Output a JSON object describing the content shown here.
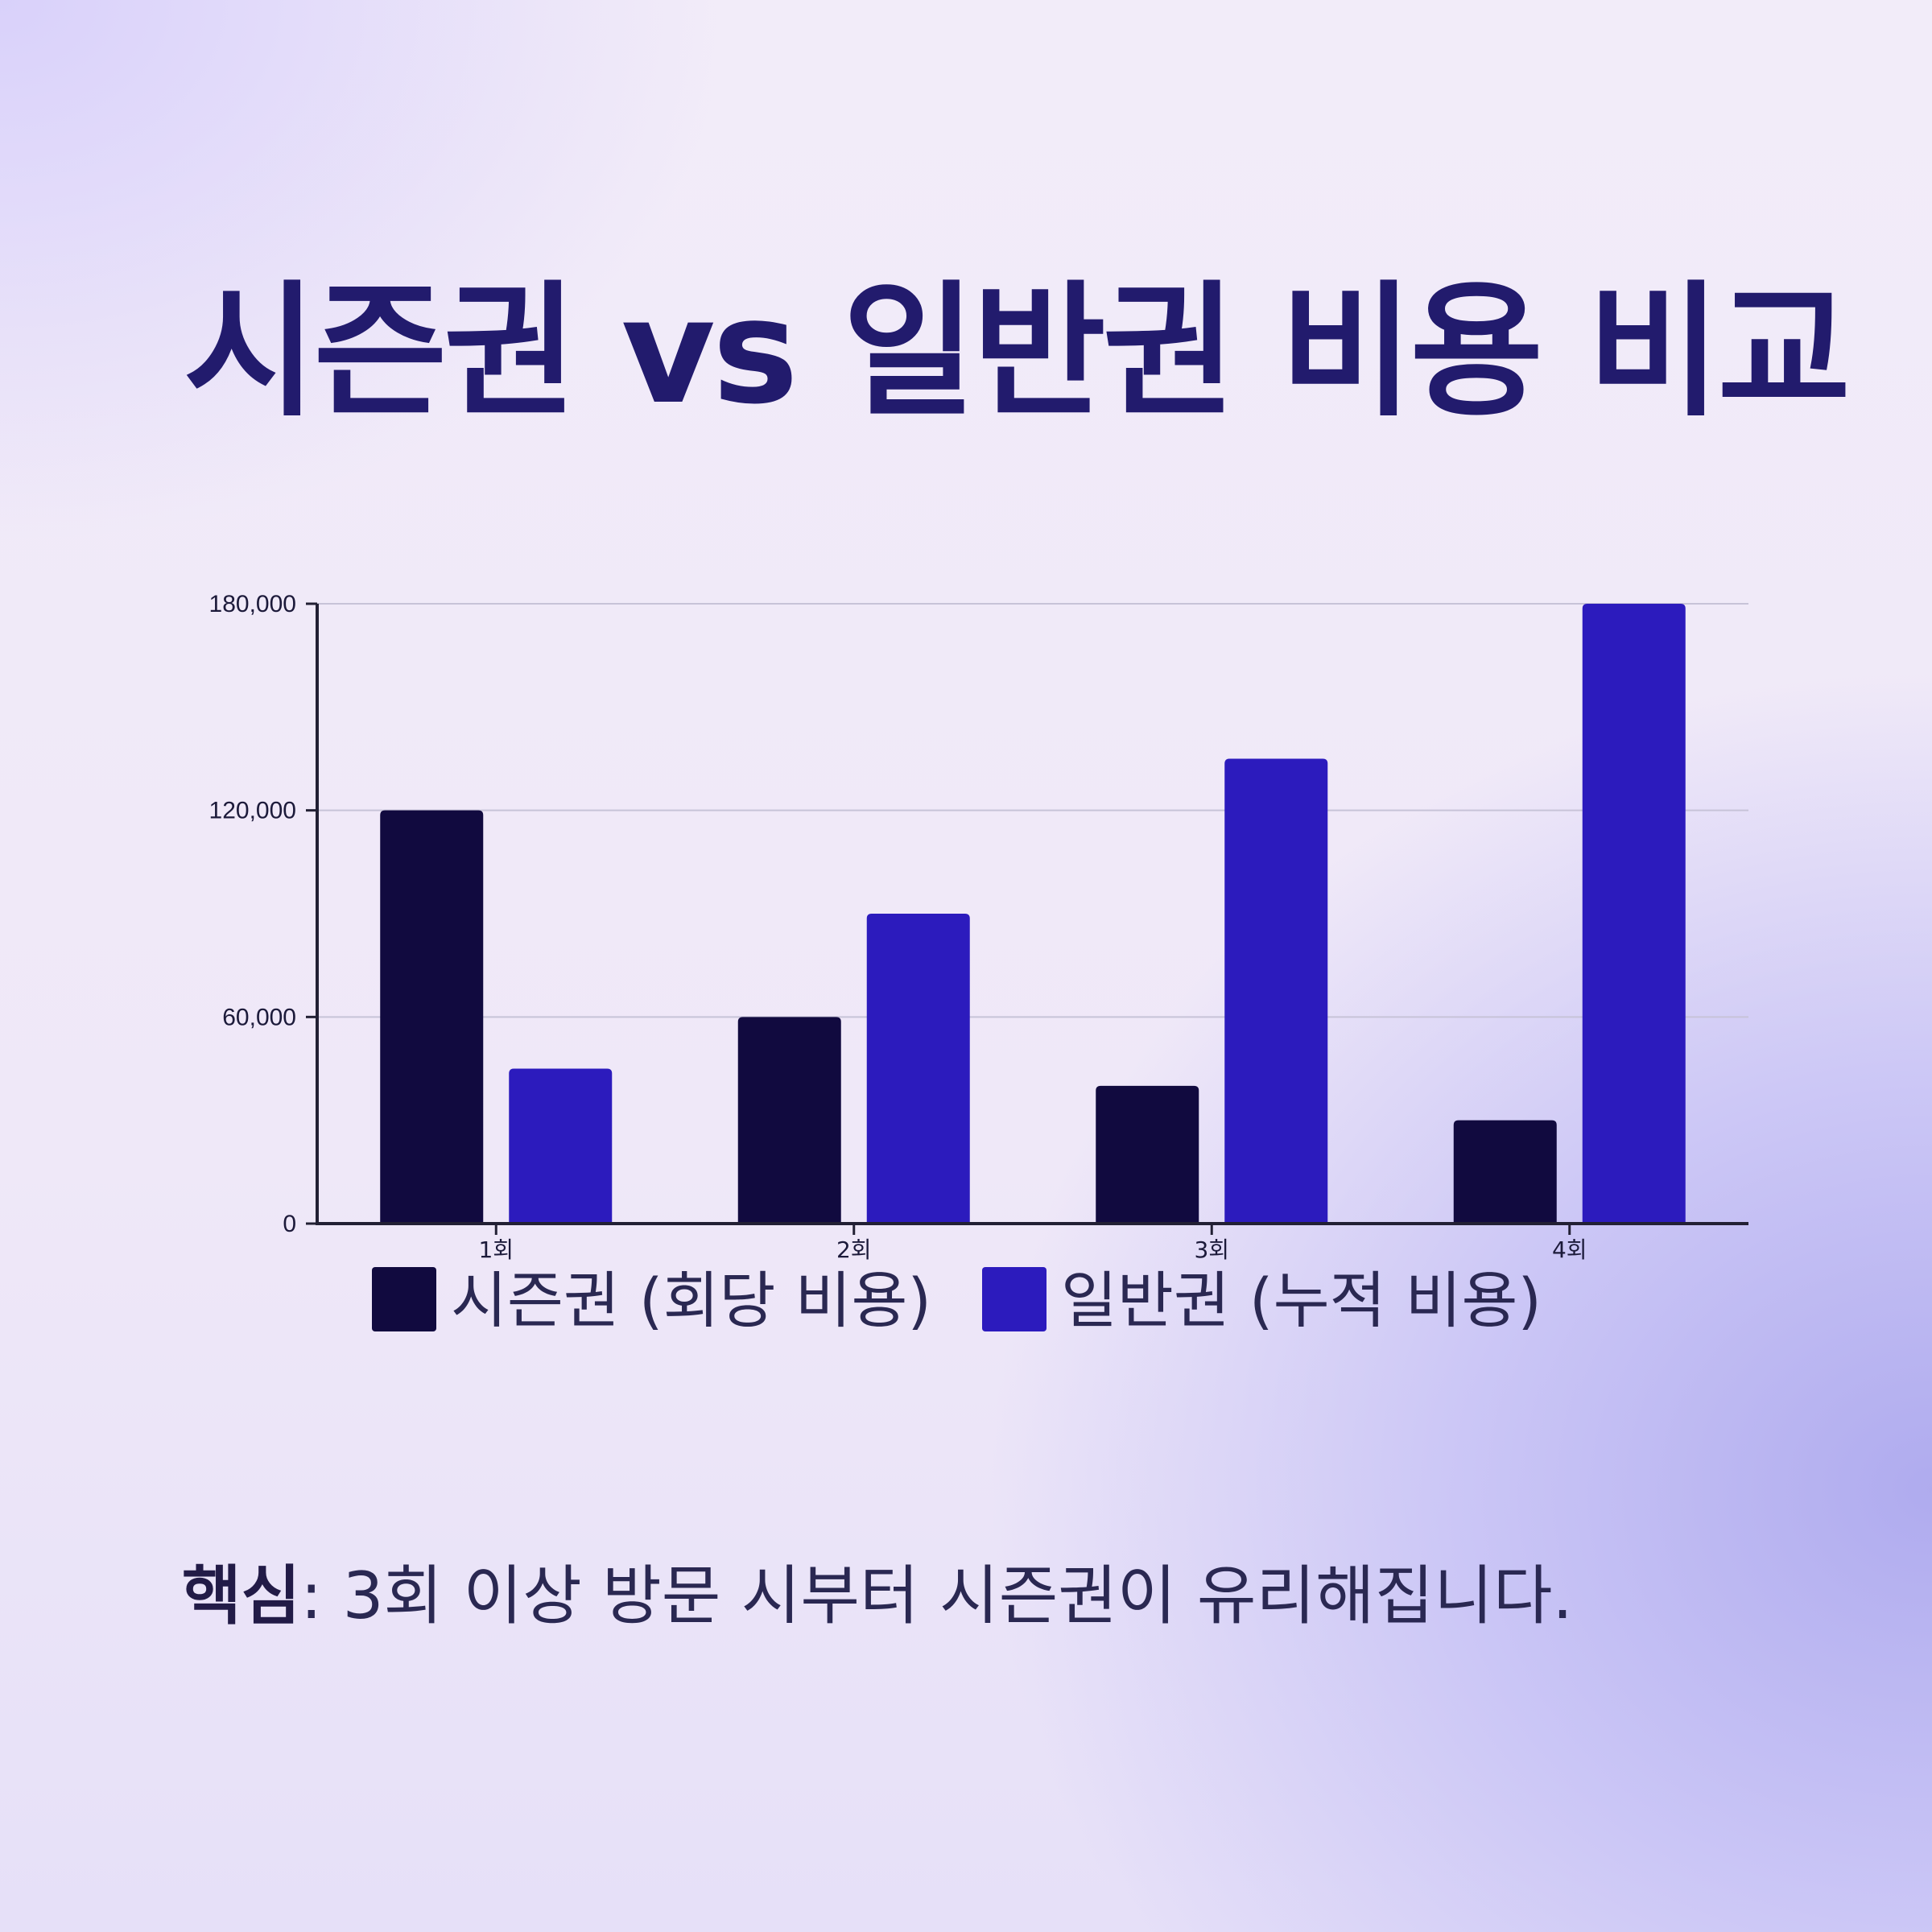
{
  "chart_data": {
    "type": "bar",
    "title": "시즌권 vs 일반권 비용 비교",
    "categories": [
      "1회",
      "2회",
      "3회",
      "4회"
    ],
    "series": [
      {
        "name": "시즌권 (회당 비용)",
        "values": [
          120000,
          60000,
          40000,
          30000
        ],
        "color": "#110a3f"
      },
      {
        "name": "일반권 (누적 비용)",
        "values": [
          45000,
          90000,
          135000,
          180000
        ],
        "color": "#2c1bbd"
      }
    ],
    "ylim": [
      0,
      180000
    ],
    "yticks": [
      0,
      60000,
      120000,
      180000
    ],
    "ytick_labels": [
      "0",
      "60,000",
      "120,000",
      "180,000"
    ],
    "grid": true,
    "legend": "bottom"
  },
  "note": {
    "bold": "핵심",
    "text": ": 3회 이상 방문 시부터 시즌권이 유리해집니다."
  }
}
